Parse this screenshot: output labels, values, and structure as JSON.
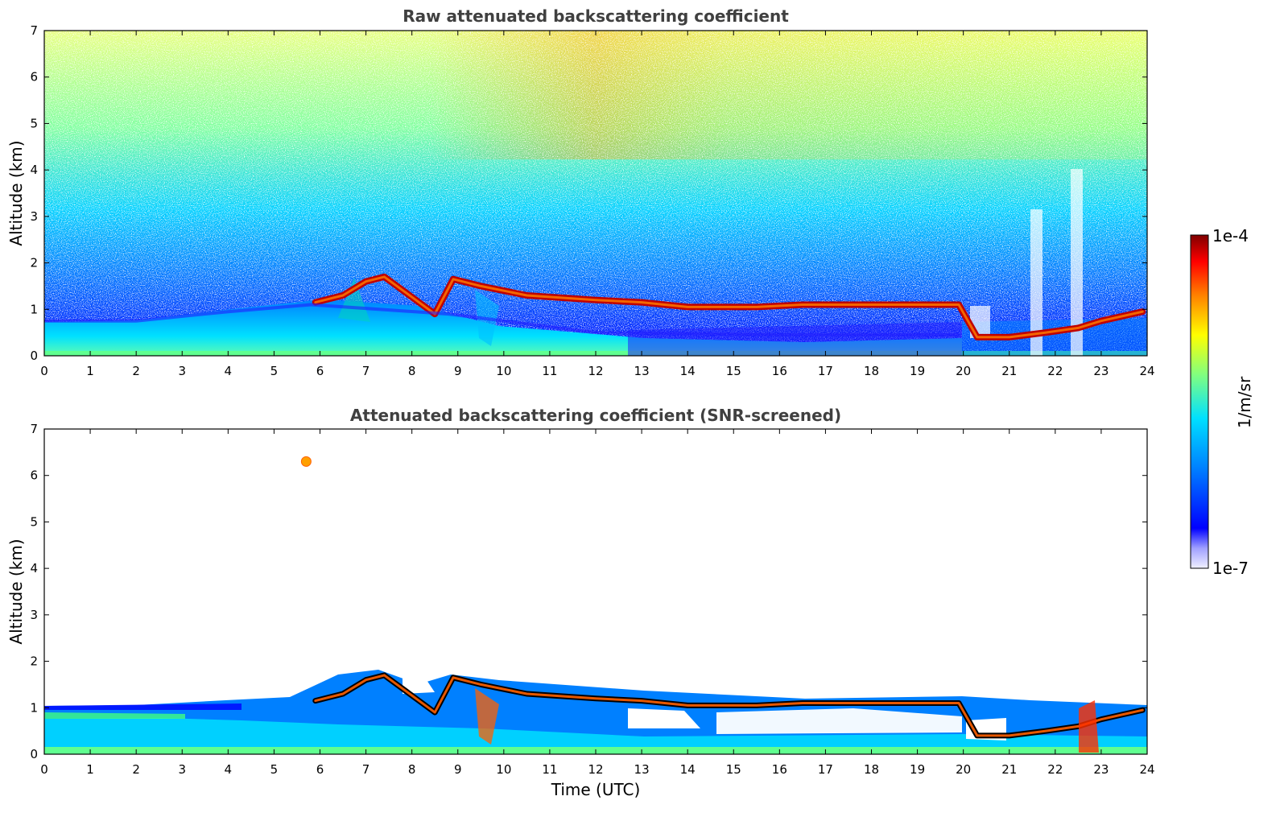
{
  "chart_data": [
    {
      "type": "heatmap",
      "title": "Raw attenuated backscattering coefficient",
      "ylabel": "Altitude (km)",
      "xlabel": "",
      "xlim": [
        0,
        24
      ],
      "ylim": [
        0,
        7
      ],
      "xticks": [
        "0",
        "1",
        "2",
        "3",
        "4",
        "5",
        "6",
        "7",
        "8",
        "9",
        "10",
        "11",
        "12",
        "13",
        "14",
        "15",
        "16",
        "17",
        "18",
        "19",
        "20",
        "21",
        "22",
        "23",
        "24"
      ],
      "yticks": [
        "0",
        "1",
        "2",
        "3",
        "4",
        "5",
        "6",
        "7"
      ],
      "layers": [
        {
          "feature": "cloud layer",
          "points": [
            [
              5.9,
              1.15
            ],
            [
              6.5,
              1.3
            ],
            [
              7.0,
              1.6
            ],
            [
              7.4,
              1.7
            ],
            [
              8.5,
              0.9
            ],
            [
              8.9,
              1.65
            ],
            [
              9.5,
              1.5
            ],
            [
              10.5,
              1.3
            ],
            [
              12.0,
              1.2
            ],
            [
              13.0,
              1.15
            ],
            [
              14.0,
              1.05
            ],
            [
              15.5,
              1.05
            ],
            [
              16.5,
              1.1
            ],
            [
              17.5,
              1.1
            ],
            [
              18.5,
              1.1
            ],
            [
              19.9,
              1.1
            ],
            [
              20.3,
              0.4
            ],
            [
              21.0,
              0.4
            ],
            [
              21.8,
              0.5
            ],
            [
              22.5,
              0.6
            ],
            [
              23.0,
              0.75
            ],
            [
              23.9,
              0.95
            ]
          ]
        },
        {
          "feature": "boundary layer top",
          "points": [
            [
              0,
              0.75
            ],
            [
              2,
              0.75
            ],
            [
              4,
              0.95
            ],
            [
              5.8,
              1.1
            ],
            [
              8.8,
              0.9
            ],
            [
              12,
              0.5
            ],
            [
              16,
              0.45
            ],
            [
              19.9,
              0.45
            ]
          ]
        }
      ]
    },
    {
      "type": "heatmap",
      "title": "Attenuated backscattering coefficient (SNR-screened)",
      "ylabel": "Altitude (km)",
      "xlabel": "Time (UTC)",
      "xlim": [
        0,
        24
      ],
      "ylim": [
        0,
        7
      ],
      "xticks": [
        "0",
        "1",
        "2",
        "3",
        "4",
        "5",
        "6",
        "7",
        "8",
        "9",
        "10",
        "11",
        "12",
        "13",
        "14",
        "15",
        "16",
        "17",
        "18",
        "19",
        "20",
        "21",
        "22",
        "23",
        "24"
      ],
      "yticks": [
        "0",
        "1",
        "2",
        "3",
        "4",
        "5",
        "6",
        "7"
      ],
      "features": [
        {
          "feature": "isolated cloud",
          "x": 5.7,
          "y": 6.3
        },
        {
          "feature": "screened-out region",
          "x_range": [
            13,
            20
          ],
          "y_range": [
            0.3,
            0.9
          ]
        }
      ]
    }
  ],
  "colorbar": {
    "max_label": "1e-4",
    "min_label": "1e-7",
    "unit_label": "1/m/sr",
    "scale": "log",
    "colors": [
      "#e8e8ff",
      "#8080ff",
      "#0000ff",
      "#0080ff",
      "#00ffff",
      "#80ff80",
      "#ffff00",
      "#ff8000",
      "#ff0000",
      "#800000"
    ]
  }
}
